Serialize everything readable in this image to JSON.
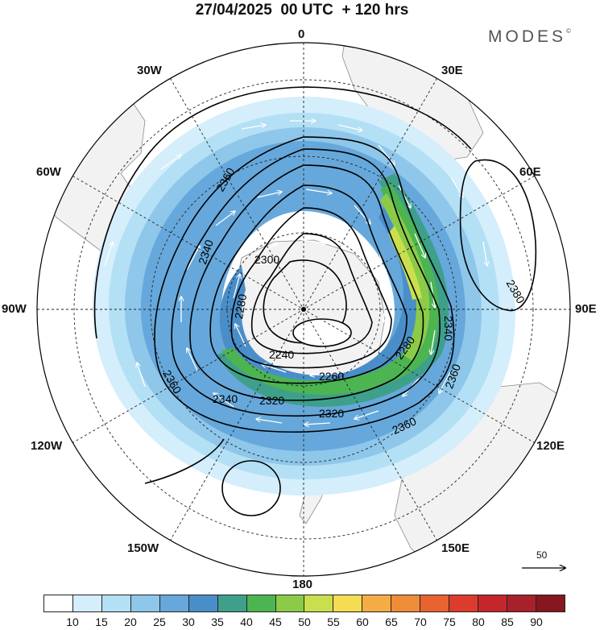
{
  "title": "27/04/2025  00 UTC  + 120 hrs",
  "brand": "MODES",
  "brand_mark": "©",
  "projection": "polar stereographic, south pole centred",
  "longitude_labels": [
    "0",
    "30E",
    "60E",
    "90E",
    "120E",
    "150E",
    "180",
    "150W",
    "120W",
    "90W",
    "60W",
    "30W"
  ],
  "contour_labels": [
    {
      "value": "2360",
      "location": "upper-left, south of South America"
    },
    {
      "value": "2340",
      "location": "left-centre"
    },
    {
      "value": "2300",
      "location": "centre-left"
    },
    {
      "value": "2280",
      "location": "left of pole"
    },
    {
      "value": "2240",
      "location": "lower-left of pole"
    },
    {
      "value": "2260",
      "location": "below pole"
    },
    {
      "value": "2320",
      "location": "lower-centre"
    },
    {
      "value": "2320",
      "location": "lower-centre-right"
    },
    {
      "value": "2340",
      "location": "lower-left"
    },
    {
      "value": "2360",
      "location": "lower-right"
    },
    {
      "value": "2360",
      "location": "right"
    },
    {
      "value": "2360",
      "location": "lower-left outer"
    },
    {
      "value": "2340",
      "location": "right, near 90E"
    },
    {
      "value": "2280",
      "location": "lower-right"
    },
    {
      "value": "2380",
      "location": "far right, near 60E high"
    }
  ],
  "colorbar": {
    "labels": [
      "10",
      "15",
      "20",
      "25",
      "30",
      "35",
      "40",
      "45",
      "50",
      "55",
      "60",
      "65",
      "70",
      "75",
      "80",
      "85",
      "90"
    ],
    "colors": [
      "#ffffff",
      "#d4eefb",
      "#b3e0f5",
      "#8ec7ea",
      "#66a8db",
      "#4a8ec9",
      "#3ea08a",
      "#4cb552",
      "#8ccb48",
      "#cadf4e",
      "#f4dc53",
      "#f4ad45",
      "#ef8c39",
      "#e8632f",
      "#dd3c2c",
      "#c4262c",
      "#a8202a",
      "#87161f"
    ]
  },
  "reference_vector": {
    "value": "50"
  },
  "colors": {
    "land": "#f2f2f2",
    "coast": "#8a8a8a",
    "contour": "#000000",
    "arrow": "#ffffff"
  }
}
